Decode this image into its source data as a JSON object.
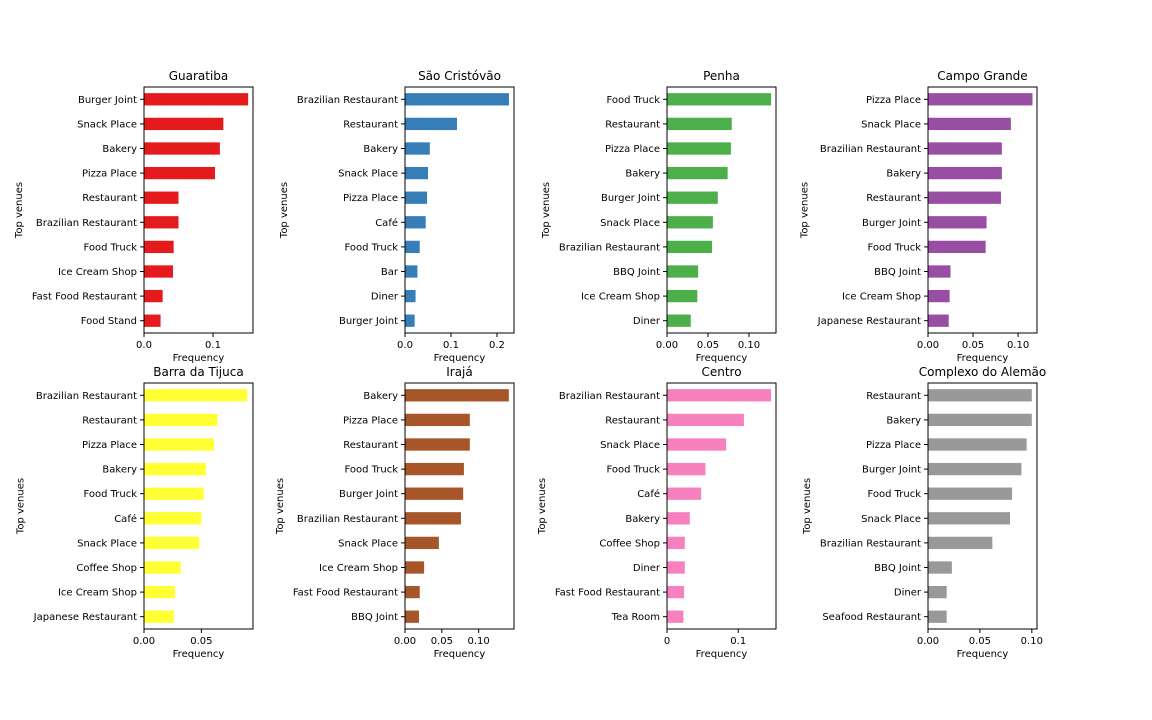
{
  "chart_data": [
    {
      "type": "bar",
      "orientation": "horizontal",
      "title": "Guaratiba",
      "color": "#e41a1c",
      "xlabel": "Frequency",
      "ylabel": "Top venues",
      "xlim": [
        0,
        0.158
      ],
      "xticks": [
        0,
        0.1
      ],
      "xtick_labels": [
        "0.0",
        "0.1"
      ],
      "categories": [
        "Burger Joint",
        "Snack Place",
        "Bakery",
        "Pizza Place",
        "Restaurant",
        "Brazilian Restaurant",
        "Food Truck",
        "Ice Cream Shop",
        "Fast Food Restaurant",
        "Food Stand"
      ],
      "values": [
        0.151,
        0.115,
        0.11,
        0.103,
        0.05,
        0.05,
        0.043,
        0.042,
        0.027,
        0.024
      ]
    },
    {
      "type": "bar",
      "orientation": "horizontal",
      "title": "São Cristóvão",
      "color": "#377eb8",
      "xlabel": "Frequency",
      "ylabel": "Top venues",
      "xlim": [
        0,
        0.237
      ],
      "xticks": [
        0,
        0.1,
        0.2
      ],
      "xtick_labels": [
        "0.0",
        "0.1",
        "0.2"
      ],
      "categories": [
        "Brazilian Restaurant",
        "Restaurant",
        "Bakery",
        "Snack Place",
        "Pizza Place",
        "Café",
        "Food Truck",
        "Bar",
        "Diner",
        "Burger Joint"
      ],
      "values": [
        0.226,
        0.113,
        0.054,
        0.05,
        0.048,
        0.045,
        0.032,
        0.027,
        0.023,
        0.021
      ]
    },
    {
      "type": "bar",
      "orientation": "horizontal",
      "title": "Penha",
      "color": "#4daf4a",
      "xlabel": "Frequency",
      "ylabel": "Top venues",
      "xlim": [
        0,
        0.133
      ],
      "xticks": [
        0,
        0.05,
        0.1
      ],
      "xtick_labels": [
        "0.00",
        "0.05",
        "0.10"
      ],
      "categories": [
        "Food Truck",
        "Restaurant",
        "Pizza Place",
        "Bakery",
        "Burger Joint",
        "Snack Place",
        "Brazilian Restaurant",
        "BBQ Joint",
        "Ice Cream Shop",
        "Diner"
      ],
      "values": [
        0.127,
        0.079,
        0.078,
        0.074,
        0.062,
        0.056,
        0.055,
        0.038,
        0.037,
        0.029
      ]
    },
    {
      "type": "bar",
      "orientation": "horizontal",
      "title": "Campo Grande",
      "color": "#984ea3",
      "xlabel": "Frequency",
      "ylabel": "Top venues",
      "xlim": [
        0,
        0.121
      ],
      "xticks": [
        0,
        0.05,
        0.1
      ],
      "xtick_labels": [
        "0.00",
        "0.05",
        "0.10"
      ],
      "categories": [
        "Pizza Place",
        "Snack Place",
        "Brazilian Restaurant",
        "Bakery",
        "Restaurant",
        "Burger Joint",
        "Food Truck",
        "BBQ Joint",
        "Ice Cream Shop",
        "Japanese Restaurant"
      ],
      "values": [
        0.116,
        0.092,
        0.082,
        0.082,
        0.081,
        0.065,
        0.064,
        0.025,
        0.024,
        0.023
      ]
    },
    {
      "type": "bar",
      "orientation": "horizontal",
      "title": "Barra da Tijuca",
      "color": "#ffff33",
      "xlabel": "Frequency",
      "ylabel": "Top venues",
      "xlim": [
        0,
        0.095
      ],
      "xticks": [
        0,
        0.05
      ],
      "xtick_labels": [
        "0.00",
        "0.05"
      ],
      "categories": [
        "Brazilian Restaurant",
        "Restaurant",
        "Pizza Place",
        "Bakery",
        "Food Truck",
        "Café",
        "Snack Place",
        "Coffee Shop",
        "Ice Cream Shop",
        "Japanese Restaurant"
      ],
      "values": [
        0.09,
        0.064,
        0.061,
        0.054,
        0.052,
        0.05,
        0.048,
        0.032,
        0.027,
        0.026
      ]
    },
    {
      "type": "bar",
      "orientation": "horizontal",
      "title": "Irajá",
      "color": "#a65628",
      "xlabel": "Frequency",
      "ylabel": "Top venues",
      "xlim": [
        0,
        0.148
      ],
      "xticks": [
        0,
        0.05,
        0.1
      ],
      "xtick_labels": [
        "0.00",
        "0.05",
        "0.10"
      ],
      "categories": [
        "Bakery",
        "Pizza Place",
        "Restaurant",
        "Food Truck",
        "Burger Joint",
        "Brazilian Restaurant",
        "Snack Place",
        "Ice Cream Shop",
        "Fast Food Restaurant",
        "BBQ Joint"
      ],
      "values": [
        0.141,
        0.088,
        0.088,
        0.08,
        0.079,
        0.076,
        0.046,
        0.026,
        0.02,
        0.019
      ]
    },
    {
      "type": "bar",
      "orientation": "horizontal",
      "title": "Centro",
      "color": "#f781bf",
      "xlabel": "Frequency",
      "ylabel": "Top venues",
      "xlim": [
        0,
        0.153
      ],
      "xticks": [
        0,
        0.1
      ],
      "xtick_labels": [
        "0",
        "0.1"
      ],
      "categories": [
        "Brazilian Restaurant",
        "Restaurant",
        "Snack Place",
        "Food Truck",
        "Café",
        "Bakery",
        "Coffee Shop",
        "Diner",
        "Fast Food Restaurant",
        "Tea Room"
      ],
      "values": [
        0.146,
        0.108,
        0.083,
        0.054,
        0.048,
        0.032,
        0.025,
        0.025,
        0.024,
        0.023
      ]
    },
    {
      "type": "bar",
      "orientation": "horizontal",
      "title": "Complexo do Alemão",
      "color": "#999999",
      "xlabel": "Frequency",
      "ylabel": "Top venues",
      "xlim": [
        0,
        0.105
      ],
      "xticks": [
        0,
        0.05,
        0.1
      ],
      "xtick_labels": [
        "0.00",
        "0.05",
        "0.10"
      ],
      "categories": [
        "Restaurant",
        "Bakery",
        "Pizza Place",
        "Burger Joint",
        "Food Truck",
        "Snack Place",
        "Brazilian Restaurant",
        "BBQ Joint",
        "Diner",
        "Seafood Restaurant"
      ],
      "values": [
        0.1,
        0.1,
        0.095,
        0.09,
        0.081,
        0.079,
        0.062,
        0.023,
        0.018,
        0.018
      ]
    }
  ]
}
